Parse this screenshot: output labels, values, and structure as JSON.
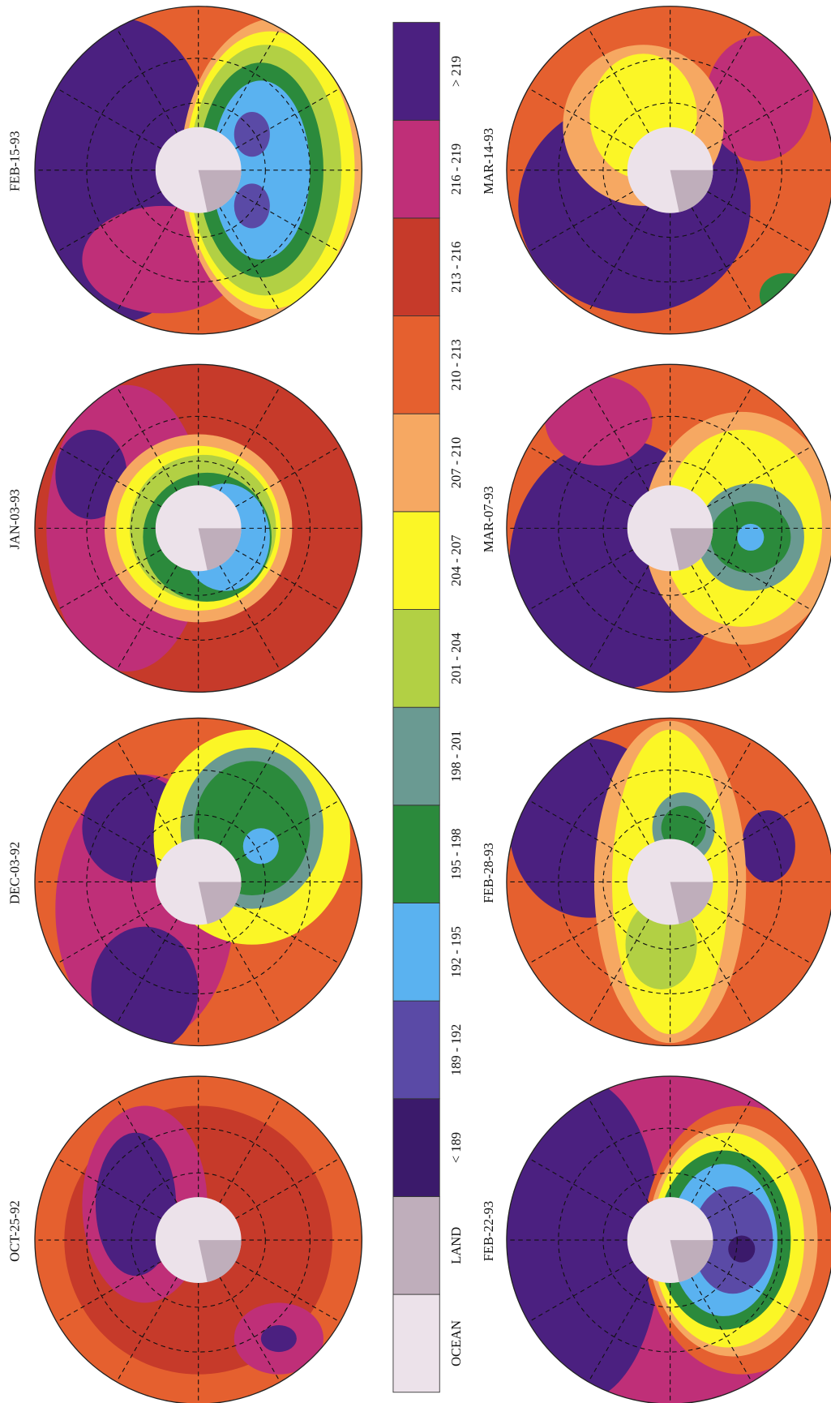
{
  "maps": [
    {
      "label": "FEB-15-93"
    },
    {
      "label": "JAN-03-93"
    },
    {
      "label": "DEC-03-92"
    },
    {
      "label": "OCT-25-92"
    },
    {
      "label": "MAR-14-93"
    },
    {
      "label": "MAR-07-93"
    },
    {
      "label": "FEB-28-93"
    },
    {
      "label": "FEB-22-93"
    }
  ],
  "legend": {
    "items": [
      {
        "label": "OCEAN",
        "color": "#ece2ea"
      },
      {
        "label": "LAND",
        "color": "#bfaebb"
      },
      {
        "label": "< 189",
        "color": "#3b1a6b"
      },
      {
        "label": "189 - 192",
        "color": "#5a4aa6"
      },
      {
        "label": "192 - 195",
        "color": "#5ab2f0"
      },
      {
        "label": "195 - 198",
        "color": "#2b8a3c"
      },
      {
        "label": "198 - 201",
        "color": "#6a9a92"
      },
      {
        "label": "201 - 204",
        "color": "#b2d044"
      },
      {
        "label": "204 - 207",
        "color": "#fbf626"
      },
      {
        "label": "207 - 210",
        "color": "#f6a862"
      },
      {
        "label": "210 - 213",
        "color": "#e5602f"
      },
      {
        "label": "213 - 216",
        "color": "#c63a2a"
      },
      {
        "label": "216 - 219",
        "color": "#bf2f78"
      },
      {
        "label": "> 219",
        "color": "#4b2080"
      }
    ]
  }
}
